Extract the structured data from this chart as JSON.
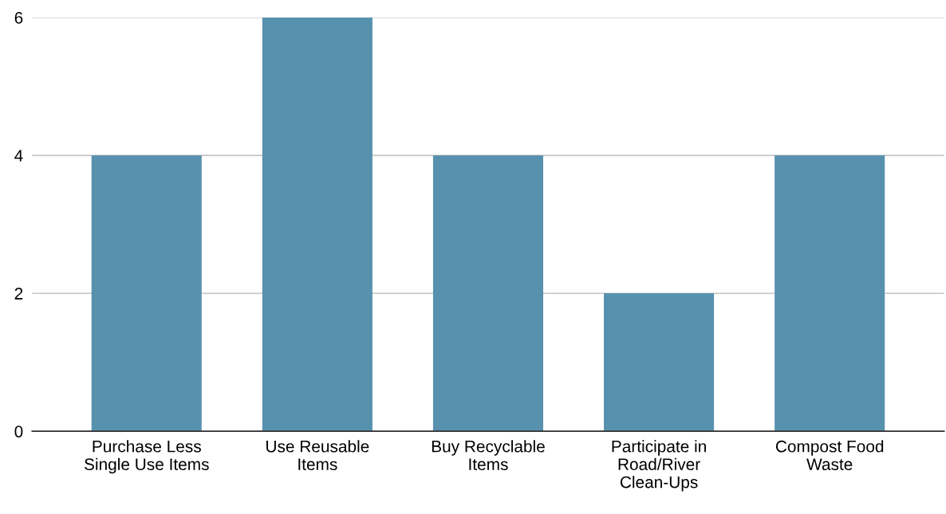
{
  "chart_data": {
    "type": "bar",
    "categories": [
      "Purchase Less\nSingle Use Items",
      "Use Reusable\nItems",
      "Buy Recyclable\nItems",
      "Participate in\nRoad/River\nClean-Ups",
      "Compost Food\nWaste"
    ],
    "values": [
      4,
      6,
      4,
      2,
      4
    ],
    "color": "#5891ae",
    "ylim": [
      0,
      6
    ],
    "yticks": [
      0,
      2,
      4,
      6
    ],
    "grid": "y",
    "legend": false
  }
}
